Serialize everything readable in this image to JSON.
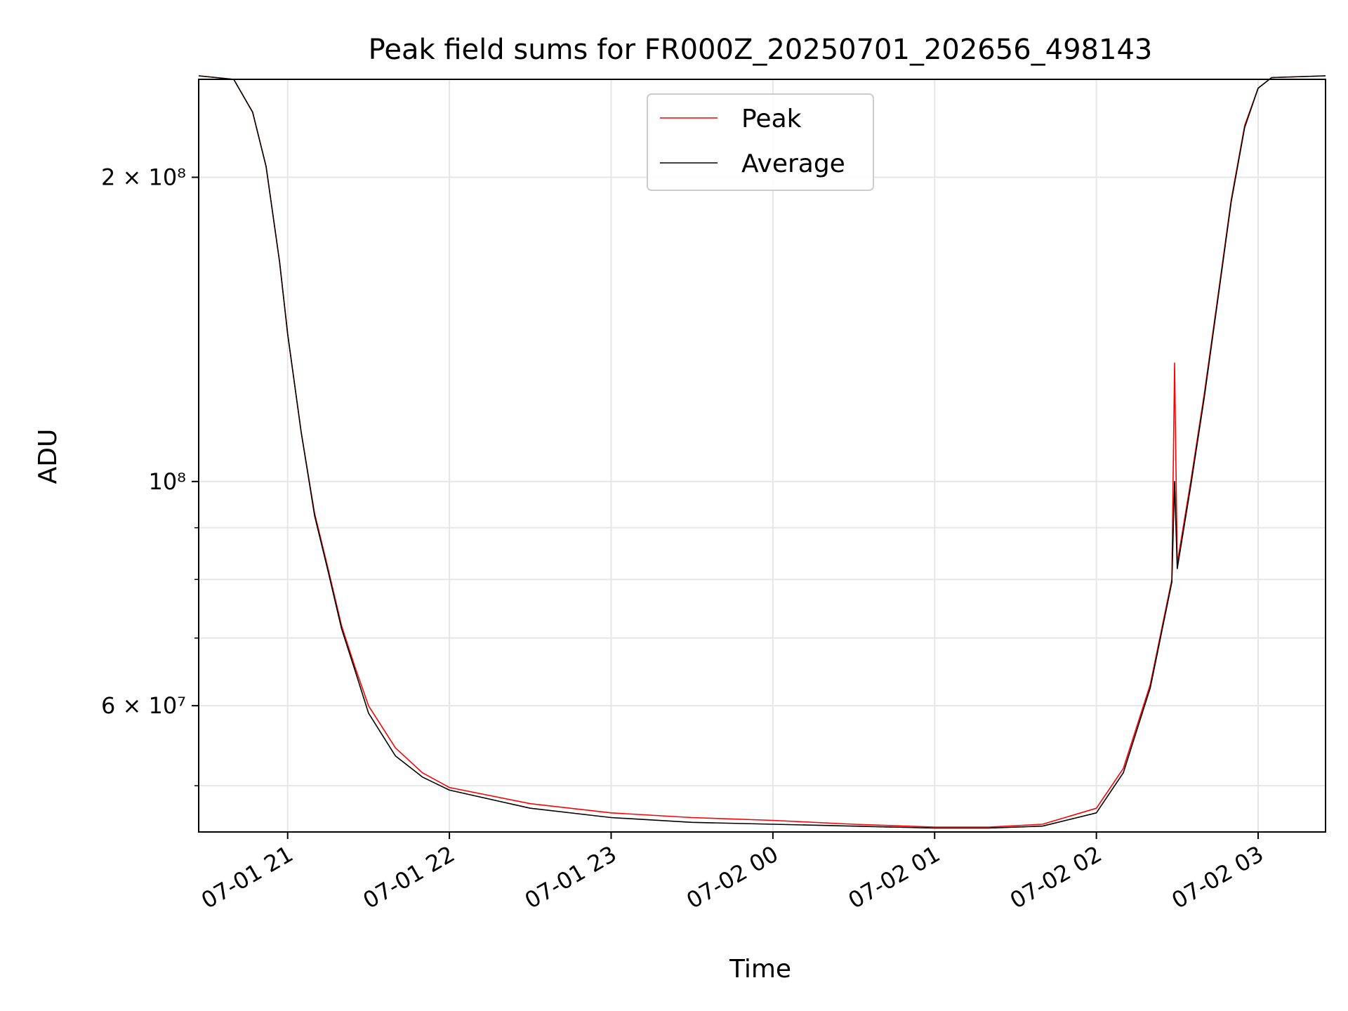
{
  "chart_data": {
    "type": "line",
    "title": "Peak field sums for FR000Z_20250701_202656_498143",
    "xlabel": "Time",
    "ylabel": "ADU",
    "yscale": "log",
    "xlim": [
      "2025-07-01 20:27",
      "2025-07-02 03:25"
    ],
    "ylim": [
      45000000,
      250000000
    ],
    "grid": true,
    "legend_position": "top-center",
    "x_ticks": [
      {
        "t": "2025-07-01 21:00",
        "label": "07-01 21"
      },
      {
        "t": "2025-07-01 22:00",
        "label": "07-01 22"
      },
      {
        "t": "2025-07-01 23:00",
        "label": "07-01 23"
      },
      {
        "t": "2025-07-02 00:00",
        "label": "07-02 00"
      },
      {
        "t": "2025-07-02 01:00",
        "label": "07-02 01"
      },
      {
        "t": "2025-07-02 02:00",
        "label": "07-02 02"
      },
      {
        "t": "2025-07-02 03:00",
        "label": "07-02 03"
      }
    ],
    "y_ticks": [
      {
        "value": 60000000,
        "label": "6 × 10⁷"
      },
      {
        "value": 100000000,
        "label": "10⁸"
      },
      {
        "value": 200000000,
        "label": "2 × 10⁸"
      }
    ],
    "y_minor_ticks": [
      50000000,
      70000000,
      80000000,
      90000000
    ],
    "series": [
      {
        "name": "Peak",
        "color": "#ff0000",
        "points": [
          [
            "2025-07-01 20:27",
            252000000
          ],
          [
            "2025-07-01 20:40",
            250000000
          ],
          [
            "2025-07-01 20:47",
            232000000
          ],
          [
            "2025-07-01 20:52",
            205000000
          ],
          [
            "2025-07-01 20:57",
            165000000
          ],
          [
            "2025-07-01 21:00",
            140000000
          ],
          [
            "2025-07-01 21:05",
            112000000
          ],
          [
            "2025-07-01 21:10",
            93000000
          ],
          [
            "2025-07-01 21:15",
            82000000
          ],
          [
            "2025-07-01 21:20",
            72000000
          ],
          [
            "2025-07-01 21:25",
            65500000
          ],
          [
            "2025-07-01 21:30",
            60000000
          ],
          [
            "2025-07-01 21:40",
            54500000
          ],
          [
            "2025-07-01 21:50",
            51500000
          ],
          [
            "2025-07-01 22:00",
            49800000
          ],
          [
            "2025-07-01 22:30",
            48000000
          ],
          [
            "2025-07-01 23:00",
            47000000
          ],
          [
            "2025-07-01 23:30",
            46500000
          ],
          [
            "2025-07-02 00:00",
            46200000
          ],
          [
            "2025-07-02 00:30",
            45800000
          ],
          [
            "2025-07-02 01:00",
            45500000
          ],
          [
            "2025-07-02 01:20",
            45500000
          ],
          [
            "2025-07-02 01:40",
            45800000
          ],
          [
            "2025-07-02 02:00",
            47500000
          ],
          [
            "2025-07-02 02:10",
            52000000
          ],
          [
            "2025-07-02 02:20",
            63000000
          ],
          [
            "2025-07-02 02:28",
            80000000
          ],
          [
            "2025-07-02 02:29",
            131000000
          ],
          [
            "2025-07-02 02:30",
            83000000
          ],
          [
            "2025-07-02 02:35",
            100000000
          ],
          [
            "2025-07-02 02:40",
            122000000
          ],
          [
            "2025-07-02 02:45",
            152000000
          ],
          [
            "2025-07-02 02:50",
            190000000
          ],
          [
            "2025-07-02 02:55",
            225000000
          ],
          [
            "2025-07-02 03:00",
            245000000
          ],
          [
            "2025-07-02 03:05",
            251000000
          ],
          [
            "2025-07-02 03:25",
            252000000
          ]
        ]
      },
      {
        "name": "Average",
        "color": "#000000",
        "points": [
          [
            "2025-07-01 20:27",
            252000000
          ],
          [
            "2025-07-01 20:40",
            250000000
          ],
          [
            "2025-07-01 20:47",
            232000000
          ],
          [
            "2025-07-01 20:52",
            205000000
          ],
          [
            "2025-07-01 20:57",
            165000000
          ],
          [
            "2025-07-01 21:00",
            140000000
          ],
          [
            "2025-07-01 21:05",
            112000000
          ],
          [
            "2025-07-01 21:10",
            92500000
          ],
          [
            "2025-07-01 21:15",
            81500000
          ],
          [
            "2025-07-01 21:20",
            71500000
          ],
          [
            "2025-07-01 21:25",
            65000000
          ],
          [
            "2025-07-01 21:30",
            59000000
          ],
          [
            "2025-07-01 21:40",
            53500000
          ],
          [
            "2025-07-01 21:50",
            51000000
          ],
          [
            "2025-07-01 22:00",
            49500000
          ],
          [
            "2025-07-01 22:30",
            47500000
          ],
          [
            "2025-07-01 23:00",
            46500000
          ],
          [
            "2025-07-01 23:30",
            46000000
          ],
          [
            "2025-07-02 00:00",
            45800000
          ],
          [
            "2025-07-02 00:30",
            45600000
          ],
          [
            "2025-07-02 01:00",
            45400000
          ],
          [
            "2025-07-02 01:20",
            45400000
          ],
          [
            "2025-07-02 01:40",
            45600000
          ],
          [
            "2025-07-02 02:00",
            47000000
          ],
          [
            "2025-07-02 02:10",
            51500000
          ],
          [
            "2025-07-02 02:20",
            62500000
          ],
          [
            "2025-07-02 02:28",
            79500000
          ],
          [
            "2025-07-02 02:29",
            100000000
          ],
          [
            "2025-07-02 02:30",
            82000000
          ],
          [
            "2025-07-02 02:35",
            99000000
          ],
          [
            "2025-07-02 02:40",
            121000000
          ],
          [
            "2025-07-02 02:45",
            151000000
          ],
          [
            "2025-07-02 02:50",
            189000000
          ],
          [
            "2025-07-02 02:55",
            224000000
          ],
          [
            "2025-07-02 03:00",
            245000000
          ],
          [
            "2025-07-02 03:05",
            251000000
          ],
          [
            "2025-07-02 03:25",
            252000000
          ]
        ]
      }
    ]
  }
}
